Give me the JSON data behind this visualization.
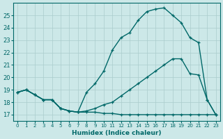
{
  "xlabel": "Humidex (Indice chaleur)",
  "bg_color": "#cce8e8",
  "grid_color": "#aacccc",
  "line_color": "#006868",
  "spine_color": "#006868",
  "xlim": [
    -0.5,
    23.5
  ],
  "ylim": [
    16.5,
    26.0
  ],
  "yticks": [
    17,
    18,
    19,
    20,
    21,
    22,
    23,
    24,
    25
  ],
  "xticks": [
    0,
    1,
    2,
    3,
    4,
    5,
    6,
    7,
    8,
    9,
    10,
    11,
    12,
    13,
    14,
    15,
    16,
    17,
    18,
    19,
    20,
    21,
    22,
    23
  ],
  "curve1_x": [
    0,
    1,
    2,
    3,
    4,
    5,
    6,
    7,
    8,
    9,
    10,
    11,
    12,
    13,
    14,
    15,
    16,
    17,
    18,
    19,
    20,
    21,
    22,
    23
  ],
  "curve1_y": [
    18.8,
    19.0,
    18.6,
    18.2,
    18.2,
    17.5,
    17.3,
    17.2,
    18.8,
    19.5,
    20.5,
    22.2,
    23.2,
    23.6,
    24.6,
    25.3,
    25.5,
    25.6,
    25.0,
    24.4,
    23.2,
    22.8,
    18.2,
    17.0
  ],
  "curve2_x": [
    0,
    1,
    2,
    3,
    4,
    5,
    6,
    7,
    8,
    9,
    10,
    11,
    12,
    13,
    14,
    15,
    16,
    17,
    18,
    19,
    20,
    21,
    22,
    23
  ],
  "curve2_y": [
    18.8,
    19.0,
    18.6,
    18.2,
    18.2,
    17.5,
    17.3,
    17.2,
    17.3,
    17.5,
    17.8,
    18.0,
    18.5,
    19.0,
    19.5,
    20.0,
    20.5,
    21.0,
    21.5,
    21.5,
    20.3,
    20.2,
    18.2,
    17.0
  ],
  "curve3_x": [
    0,
    1,
    2,
    3,
    4,
    5,
    6,
    7,
    8,
    9,
    10,
    11,
    12,
    13,
    14,
    15,
    16,
    17,
    18,
    19,
    20,
    21,
    22,
    23
  ],
  "curve3_y": [
    18.8,
    19.0,
    18.6,
    18.2,
    18.2,
    17.5,
    17.3,
    17.2,
    17.2,
    17.2,
    17.1,
    17.1,
    17.0,
    17.0,
    17.0,
    17.0,
    17.0,
    17.0,
    17.0,
    17.0,
    17.0,
    17.0,
    17.0,
    17.0
  ]
}
